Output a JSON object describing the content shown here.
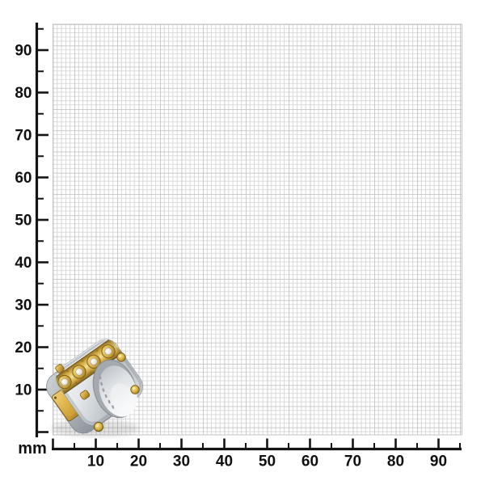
{
  "page": {
    "background_color": "#ffffff"
  },
  "ruler": {
    "unit_label": "mm",
    "axis_color": "#141414",
    "x_axis": {
      "min_mm": 0,
      "max_mm": 95,
      "minor_step_mm": 5,
      "major_step_mm": 10,
      "major_labels": [
        "10",
        "20",
        "30",
        "40",
        "50",
        "60",
        "70",
        "80",
        "90"
      ]
    },
    "y_axis": {
      "min_mm": 0,
      "max_mm": 95,
      "minor_step_mm": 5,
      "major_step_mm": 10,
      "major_labels": [
        "10",
        "20",
        "30",
        "40",
        "50",
        "60",
        "70",
        "80",
        "90"
      ]
    },
    "grid": {
      "cell_mm": 1,
      "minor_line_color": "#d6d6d6",
      "major_line_color": "#c4c4c4",
      "background": "#ffffff"
    }
  },
  "product": {
    "name": "two-tone steel and gold square ring",
    "description": "Stainless steel square-profile ring with gold plated center band, four bezel-set clear gems and gold screw accents, shown on a millimeter sizing grid",
    "span_on_grid_mm": {
      "width": 20,
      "height": 23
    },
    "colors": {
      "gold": "#c9a136",
      "gold_light": "#f2dd8e",
      "gold_dark": "#8a681c",
      "steel_light": "#f4f6f7",
      "steel_mid": "#c6cbd0",
      "steel_dark": "#8e969d",
      "stone": "#efe9dc"
    }
  }
}
